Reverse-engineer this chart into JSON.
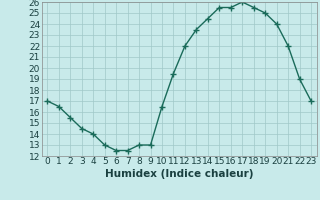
{
  "title": "",
  "xlabel": "Humidex (Indice chaleur)",
  "x": [
    0,
    1,
    2,
    3,
    4,
    5,
    6,
    7,
    8,
    9,
    10,
    11,
    12,
    13,
    14,
    15,
    16,
    17,
    18,
    19,
    20,
    21,
    22,
    23
  ],
  "y": [
    17,
    16.5,
    15.5,
    14.5,
    14,
    13,
    12.5,
    12.5,
    13,
    13,
    16.5,
    19.5,
    22,
    23.5,
    24.5,
    25.5,
    25.5,
    26,
    25.5,
    25,
    24,
    22,
    19,
    17
  ],
  "line_color": "#1a6b5a",
  "marker": "+",
  "marker_size": 4,
  "marker_lw": 1.0,
  "bg_color": "#c8eaea",
  "grid_color": "#a0c8c8",
  "ylim": [
    12,
    26
  ],
  "xlim": [
    -0.5,
    23.5
  ],
  "yticks": [
    12,
    13,
    14,
    15,
    16,
    17,
    18,
    19,
    20,
    21,
    22,
    23,
    24,
    25,
    26
  ],
  "xticks": [
    0,
    1,
    2,
    3,
    4,
    5,
    6,
    7,
    8,
    9,
    10,
    11,
    12,
    13,
    14,
    15,
    16,
    17,
    18,
    19,
    20,
    21,
    22,
    23
  ],
  "tick_label_fontsize": 6.5,
  "xlabel_fontsize": 7.5,
  "line_width": 1.0
}
